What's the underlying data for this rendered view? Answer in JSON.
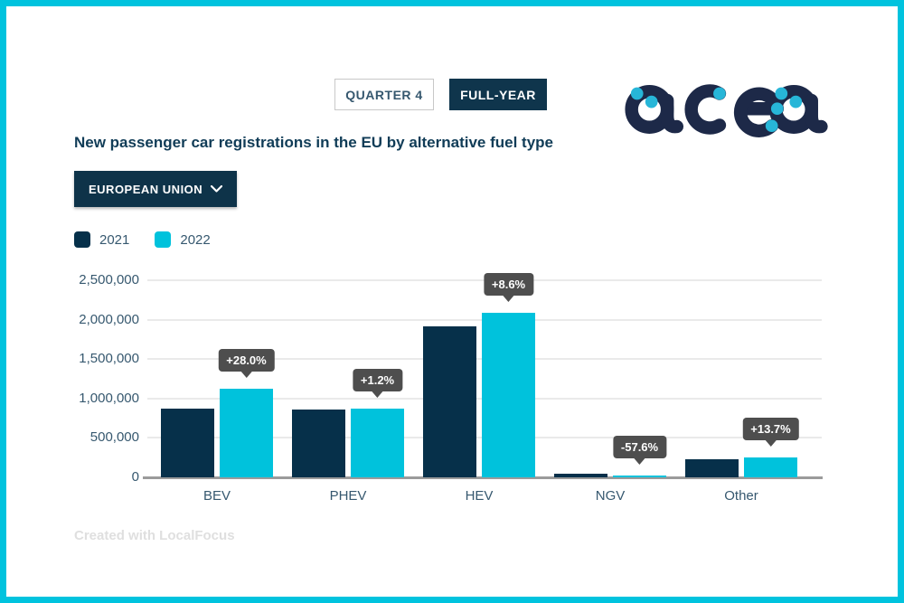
{
  "toggle": {
    "quarter_label": "QUARTER 4",
    "full_year_label": "FULL-YEAR"
  },
  "logo": {
    "name": "acea",
    "navy": "#1d2948",
    "dot_color": "#27b6d8"
  },
  "title": "New passenger car registrations in the EU by alternative fuel type",
  "region_dropdown": {
    "value": "EUROPEAN UNION"
  },
  "credit": "Created with LocalFocus",
  "colors": {
    "frame_border": "#00c3de",
    "navy_bar": "#06304a",
    "cyan_bar": "#00c2dc",
    "button_navy": "#0f354c",
    "steel_text": "#36586f",
    "tooltip_bg": "#4e4e4e",
    "gridline": "#eaeaea",
    "axis_line": "#9b9b9b"
  },
  "chart_data": {
    "type": "bar",
    "title": "New passenger car registrations in the EU by alternative fuel type",
    "xlabel": "",
    "ylabel": "",
    "categories": [
      "BEV",
      "PHEV",
      "HEV",
      "NGV",
      "Other"
    ],
    "series": [
      {
        "name": "2021",
        "color": "#06304a",
        "values": [
          875000,
          865000,
          1920000,
          42000,
          225000
        ]
      },
      {
        "name": "2022",
        "color": "#00c2dc",
        "values": [
          1120000,
          875500,
          2085000,
          17800,
          256000
        ]
      }
    ],
    "pct_change_labels": [
      "+28.0%",
      "+1.2%",
      "+8.6%",
      "-57.6%",
      "+13.7%"
    ],
    "ylim": [
      0,
      2500000
    ],
    "yticks": [
      0,
      500000,
      1000000,
      1500000,
      2000000,
      2500000
    ],
    "ytick_labels": [
      "0",
      "500,000",
      "1,000,000",
      "1,500,000",
      "2,000,000",
      "2,500,000"
    ],
    "grid": true,
    "legend_position": "top-left"
  }
}
